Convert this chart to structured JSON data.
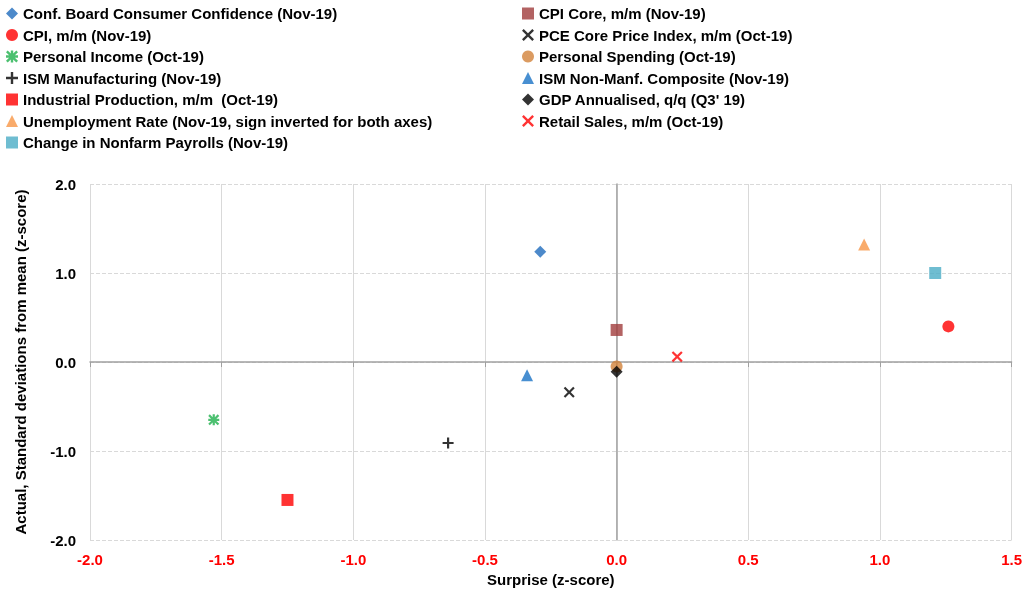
{
  "chart_data": {
    "type": "scatter",
    "xlabel": "Surprise (z-score)",
    "ylabel": "Actual, Standard deviations from mean (z-score)",
    "xlim": [
      -2,
      1.5
    ],
    "ylim": [
      -2,
      2
    ],
    "xticks": [
      {
        "value": -2,
        "label": "-2.0"
      },
      {
        "value": -1.5,
        "label": "-1.5"
      },
      {
        "value": -1,
        "label": "-1.0"
      },
      {
        "value": -0.5,
        "label": "-0.5"
      },
      {
        "value": 0,
        "label": "0.0"
      },
      0.5,
      {
        "value": 1,
        "label": "1.0"
      },
      1.5
    ],
    "yticks": [
      {
        "value": -2,
        "label": "-2.0"
      },
      {
        "value": -1,
        "label": "-1.0"
      },
      {
        "value": 0,
        "label": "0.0"
      },
      {
        "value": 1,
        "label": "1.0"
      },
      {
        "value": 2,
        "label": "2.0"
      }
    ],
    "grid": true,
    "legend": "top",
    "series": [
      {
        "name": "Conf. Board Consumer Confidence (Nov-19)",
        "color": "#1f6bbd",
        "marker": "diamond",
        "x": [
          -0.29
        ],
        "values": [
          1.24
        ]
      },
      {
        "name": "CPI Core, m/m (Nov-19)",
        "color": "#a03c3c",
        "marker": "square",
        "x": [
          0.0
        ],
        "values": [
          0.36
        ]
      },
      {
        "name": "CPI, m/m (Nov-19)",
        "color": "#ff0000",
        "marker": "circle",
        "x": [
          1.26
        ],
        "values": [
          0.4
        ]
      },
      {
        "name": "PCE Core Price Index, m/m (Oct-19)",
        "color": "#000000",
        "marker": "x",
        "x": [
          -0.18
        ],
        "values": [
          -0.34
        ]
      },
      {
        "name": "Personal Income (Oct-19)",
        "color": "#1fb04c",
        "marker": "star",
        "x": [
          -1.53
        ],
        "values": [
          -0.65
        ]
      },
      {
        "name": "Personal Spending (Oct-19)",
        "color": "#d2823a",
        "marker": "circle",
        "x": [
          0.0
        ],
        "values": [
          -0.05
        ]
      },
      {
        "name": "ISM Manufacturing (Nov-19)",
        "color": "#000000",
        "marker": "cross",
        "x": [
          -0.64
        ],
        "values": [
          -0.91
        ]
      },
      {
        "name": "ISM Non-Manf. Composite (Nov-19)",
        "color": "#1a73c6",
        "marker": "triangle",
        "x": [
          -0.34
        ],
        "values": [
          -0.15
        ]
      },
      {
        "name": "Industrial Production, m/m  (Oct-19)",
        "color": "#ff0000",
        "marker": "square",
        "x": [
          -1.25
        ],
        "values": [
          -1.55
        ]
      },
      {
        "name": "GDP Annualised, q/q (Q3' 19)",
        "color": "#000000",
        "marker": "diamond",
        "x": [
          0.0
        ],
        "values": [
          -0.11
        ]
      },
      {
        "name": "Unemployment Rate (Nov-19, sign inverted for both axes)",
        "color": "#f79646",
        "marker": "triangle",
        "x": [
          0.94
        ],
        "values": [
          1.32
        ]
      },
      {
        "name": "Retail Sales, m/m (Oct-19)",
        "color": "#ff0000",
        "marker": "x",
        "x": [
          0.23
        ],
        "values": [
          0.06
        ]
      },
      {
        "name": "Change in Nonfarm Payrolls (Nov-19)",
        "color": "#4bacc6",
        "marker": "square",
        "x": [
          1.21
        ],
        "values": [
          1.0
        ]
      }
    ]
  }
}
